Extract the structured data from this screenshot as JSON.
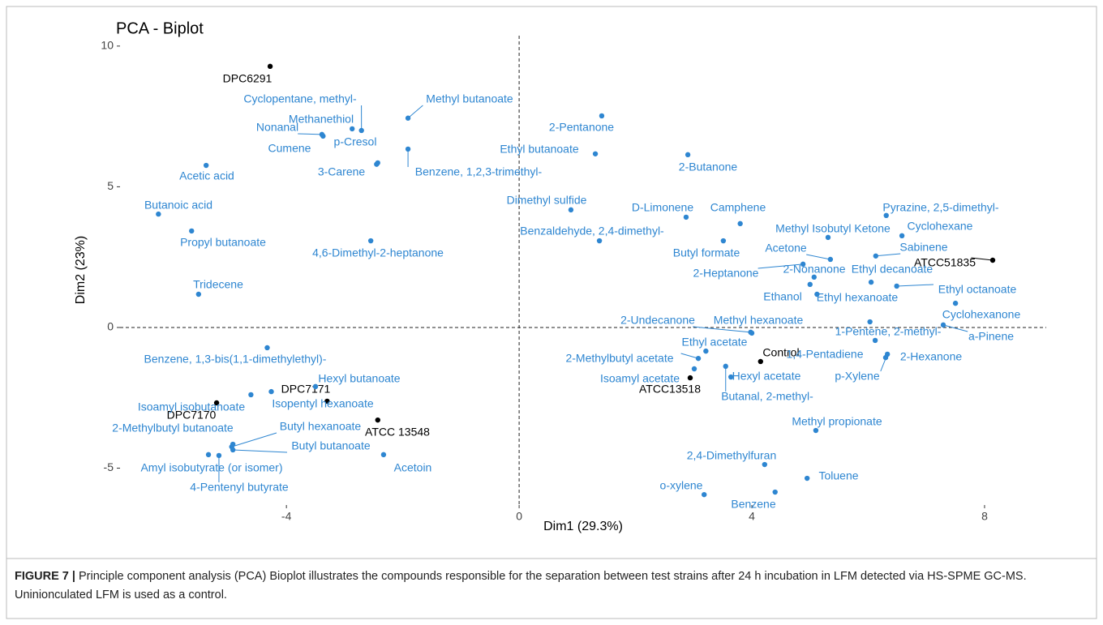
{
  "chart_data": {
    "type": "scatter",
    "title": "PCA - Biplot",
    "x_label": "Dim1 (29.3%)",
    "y_label": "Dim2 (23%)",
    "xlim": [
      -6.86,
      9.06
    ],
    "ylim": [
      -6.31,
      10.37
    ],
    "xticks": [
      -4,
      0,
      4,
      8
    ],
    "yticks": [
      -5,
      0,
      5,
      10
    ],
    "hline": 0,
    "vline": 0,
    "points": [
      {
        "label": "DPC6291",
        "x": -4.28,
        "y": 9.28,
        "color": "#000000"
      },
      {
        "label": "ATCC51835",
        "x": 8.14,
        "y": 2.39,
        "color": "#000000"
      },
      {
        "label": "Control",
        "x": 4.15,
        "y": -1.21,
        "color": "#000000"
      },
      {
        "label": "ATCC13518",
        "x": 2.94,
        "y": -1.79,
        "color": "#000000"
      },
      {
        "label": "DPC7171",
        "x": -3.3,
        "y": -2.62,
        "color": "#000000"
      },
      {
        "label": "DPC7170",
        "x": -5.2,
        "y": -2.68,
        "color": "#000000"
      },
      {
        "label": "ATCC 13548",
        "x": -2.43,
        "y": -3.29,
        "color": "#000000"
      },
      {
        "label": "Methyl butanoate",
        "x": -1.91,
        "y": 7.44,
        "color": "#2e86d1"
      },
      {
        "label": "Cyclopentane, methyl-",
        "x": -2.71,
        "y": 7.0,
        "color": "#2e86d1"
      },
      {
        "label": "Methanethiol",
        "x": -2.87,
        "y": 7.06,
        "color": "#2e86d1"
      },
      {
        "label": "Nonanal",
        "x": -3.39,
        "y": 6.86,
        "color": "#2e86d1"
      },
      {
        "label": "Cumene",
        "x": -3.37,
        "y": 6.8,
        "color": "#2e86d1"
      },
      {
        "label": "p-Cresol",
        "x": -2.43,
        "y": 5.85,
        "color": "#2e86d1"
      },
      {
        "label": "3-Carene",
        "x": -2.45,
        "y": 5.8,
        "color": "#2e86d1"
      },
      {
        "label": "Benzene, 1,2,3-trimethyl-",
        "x": -1.91,
        "y": 6.34,
        "color": "#2e86d1"
      },
      {
        "label": "Acetic acid",
        "x": -5.38,
        "y": 5.76,
        "color": "#2e86d1"
      },
      {
        "label": "Butanoic acid",
        "x": -6.2,
        "y": 4.03,
        "color": "#2e86d1"
      },
      {
        "label": "Propyl butanoate",
        "x": -5.63,
        "y": 3.43,
        "color": "#2e86d1"
      },
      {
        "label": "4,6-Dimethyl-2-heptanone",
        "x": -2.55,
        "y": 3.08,
        "color": "#2e86d1"
      },
      {
        "label": "Tridecene",
        "x": -5.51,
        "y": 1.18,
        "color": "#2e86d1"
      },
      {
        "label": "Benzene, 1,3-bis(1,1-dimethylethyl)-",
        "x": -4.33,
        "y": -0.72,
        "color": "#2e86d1"
      },
      {
        "label": "Hexyl butanoate",
        "x": -3.5,
        "y": -2.1,
        "color": "#2e86d1"
      },
      {
        "label": "Isopentyl hexanoate",
        "x": -4.26,
        "y": -2.28,
        "color": "#2e86d1"
      },
      {
        "label": "Isoamyl isobutanoate",
        "x": -4.61,
        "y": -2.39,
        "color": "#2e86d1"
      },
      {
        "label": "2-Methylbutyl butanoate",
        "x": -4.92,
        "y": -4.15,
        "color": "#2e86d1"
      },
      {
        "label": "Butyl hexanoate",
        "x": -4.94,
        "y": -4.24,
        "color": "#2e86d1"
      },
      {
        "label": "Butyl butanoate",
        "x": -4.92,
        "y": -4.35,
        "color": "#2e86d1"
      },
      {
        "label": "Amyl isobutyrate (or isomer)",
        "x": -5.34,
        "y": -4.52,
        "color": "#2e86d1"
      },
      {
        "label": "4-Pentenyl butyrate",
        "x": -5.16,
        "y": -4.55,
        "color": "#2e86d1"
      },
      {
        "label": "Acetoin",
        "x": -2.33,
        "y": -4.52,
        "color": "#2e86d1"
      },
      {
        "label": "2-Pentanone",
        "x": 1.42,
        "y": 7.52,
        "color": "#2e86d1"
      },
      {
        "label": "Ethyl butanoate",
        "x": 1.31,
        "y": 6.17,
        "color": "#2e86d1"
      },
      {
        "label": "2-Butanone",
        "x": 2.9,
        "y": 6.14,
        "color": "#2e86d1"
      },
      {
        "label": "Dimethyl sulfide",
        "x": 0.89,
        "y": 4.18,
        "color": "#2e86d1"
      },
      {
        "label": "Benzaldehyde, 2,4-dimethyl-",
        "x": 1.38,
        "y": 3.08,
        "color": "#2e86d1"
      },
      {
        "label": "D-Limonene",
        "x": 2.87,
        "y": 3.92,
        "color": "#2e86d1"
      },
      {
        "label": "Camphene",
        "x": 3.8,
        "y": 3.69,
        "color": "#2e86d1"
      },
      {
        "label": "Pyrazine, 2,5-dimethyl-",
        "x": 6.31,
        "y": 3.98,
        "color": "#2e86d1"
      },
      {
        "label": "Methyl Isobutyl Ketone",
        "x": 5.31,
        "y": 3.2,
        "color": "#2e86d1"
      },
      {
        "label": "Cyclohexane",
        "x": 6.58,
        "y": 3.26,
        "color": "#2e86d1"
      },
      {
        "label": "Butyl formate",
        "x": 3.51,
        "y": 3.08,
        "color": "#2e86d1"
      },
      {
        "label": "Sabinene",
        "x": 6.13,
        "y": 2.54,
        "color": "#2e86d1"
      },
      {
        "label": "Acetone",
        "x": 5.35,
        "y": 2.42,
        "color": "#2e86d1"
      },
      {
        "label": "2-Heptanone",
        "x": 4.88,
        "y": 2.25,
        "color": "#2e86d1"
      },
      {
        "label": "2-Nonanone",
        "x": 5.07,
        "y": 1.79,
        "color": "#2e86d1"
      },
      {
        "label": "Ethyl decanoate",
        "x": 6.05,
        "y": 1.61,
        "color": "#2e86d1"
      },
      {
        "label": "Ethyl octanoate",
        "x": 6.49,
        "y": 1.47,
        "color": "#2e86d1"
      },
      {
        "label": "Ethanol",
        "x": 5.0,
        "y": 1.53,
        "color": "#2e86d1"
      },
      {
        "label": "Ethyl hexanoate",
        "x": 5.12,
        "y": 1.18,
        "color": "#2e86d1"
      },
      {
        "label": "Cyclohexanone",
        "x": 7.5,
        "y": 0.86,
        "color": "#2e86d1"
      },
      {
        "label": "Methyl hexanoate",
        "x": 4.0,
        "y": -0.2,
        "color": "#2e86d1"
      },
      {
        "label": "2-Undecanone",
        "x": 3.98,
        "y": -0.17,
        "color": "#2e86d1"
      },
      {
        "label": "1-Pentene, 2-methyl-",
        "x": 6.03,
        "y": 0.2,
        "color": "#2e86d1"
      },
      {
        "label": "a-Pinene",
        "x": 7.29,
        "y": 0.09,
        "color": "#2e86d1"
      },
      {
        "label": "1,4-Pentadiene",
        "x": 6.12,
        "y": -0.46,
        "color": "#2e86d1"
      },
      {
        "label": "2-Hexanone",
        "x": 6.3,
        "y": -1.07,
        "color": "#2e86d1"
      },
      {
        "label": "p-Xylene",
        "x": 6.33,
        "y": -0.95,
        "color": "#2e86d1"
      },
      {
        "label": "Ethyl acetate",
        "x": 3.21,
        "y": -0.84,
        "color": "#2e86d1"
      },
      {
        "label": "2-Methylbutyl acetate",
        "x": 3.08,
        "y": -1.1,
        "color": "#2e86d1"
      },
      {
        "label": "Isoamyl acetate",
        "x": 3.01,
        "y": -1.47,
        "color": "#2e86d1"
      },
      {
        "label": "Hexyl acetate",
        "x": 3.64,
        "y": -1.76,
        "color": "#2e86d1"
      },
      {
        "label": "Butanal, 2-methyl-",
        "x": 3.55,
        "y": -1.38,
        "color": "#2e86d1"
      },
      {
        "label": "Methyl propionate",
        "x": 5.1,
        "y": -3.66,
        "color": "#2e86d1"
      },
      {
        "label": "2,4-Dimethylfuran",
        "x": 4.22,
        "y": -4.87,
        "color": "#2e86d1"
      },
      {
        "label": "Toluene",
        "x": 4.95,
        "y": -5.36,
        "color": "#2e86d1"
      },
      {
        "label": "o-xylene",
        "x": 3.18,
        "y": -5.94,
        "color": "#2e86d1"
      },
      {
        "label": "Benzene",
        "x": 4.4,
        "y": -5.85,
        "color": "#2e86d1"
      }
    ]
  },
  "caption": {
    "label": "FIGURE 7 |",
    "text": "Principle component analysis (PCA) Bioplot illustrates the compounds responsible for the separation between test strains after 24 h incubation in LFM detected via HS-SPME GC-MS. Uninionculated LFM is used as a control."
  }
}
